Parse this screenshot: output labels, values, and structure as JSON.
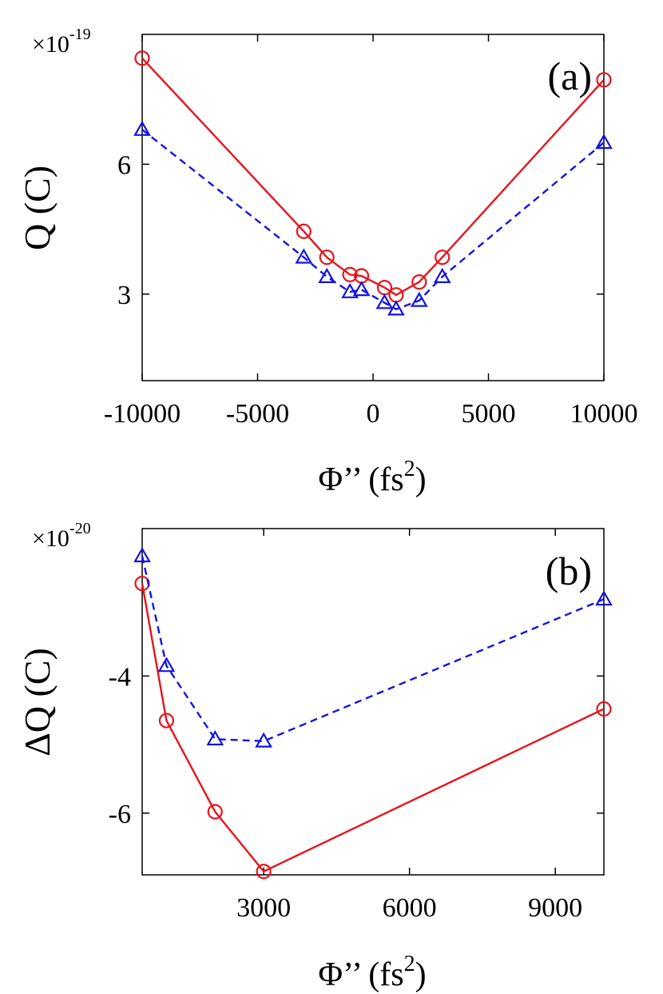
{
  "chart_data": [
    {
      "type": "line",
      "panel_label": "(a)",
      "multiplier_base": "×10",
      "multiplier_exp": "-19",
      "xlabel": {
        "main": "Φ’’ (fs",
        "sup": "2",
        "close": ")"
      },
      "ylabel": "Q (C)",
      "xlim": [
        -10000,
        10000
      ],
      "ylim": [
        1.0,
        9.0
      ],
      "xticks": [
        -10000,
        -5000,
        0,
        5000,
        10000
      ],
      "xtick_labels": [
        "-10000",
        "-5000",
        "0",
        "5000",
        "10000"
      ],
      "yticks": [
        6,
        3
      ],
      "ytick_labels": [
        "6",
        "3"
      ],
      "grid": false,
      "series": [
        {
          "color": "#e8141b",
          "style": "solid",
          "marker": "circle",
          "x": [
            -10000,
            -3000,
            -2000,
            -1000,
            -500,
            500,
            1000,
            2000,
            3000,
            10000
          ],
          "y": [
            8.45,
            4.45,
            3.85,
            3.45,
            3.42,
            3.15,
            2.98,
            3.28,
            3.85,
            7.95
          ]
        },
        {
          "color": "#1414e0",
          "style": "dashed",
          "marker": "triangle",
          "x": [
            -10000,
            -3000,
            -2000,
            -1000,
            -500,
            500,
            1000,
            2000,
            3000,
            10000
          ],
          "y": [
            6.8,
            3.85,
            3.4,
            3.05,
            3.1,
            2.8,
            2.65,
            2.85,
            3.4,
            6.5
          ]
        }
      ]
    },
    {
      "type": "line",
      "panel_label": "(b)",
      "multiplier_base": "×10",
      "multiplier_exp": "-20",
      "xlabel": {
        "main": "Φ’’ (fs",
        "sup": "2",
        "close": ")"
      },
      "ylabel": "ΔQ (C)",
      "xlim": [
        500,
        10000
      ],
      "ylim": [
        -6.9,
        -1.85
      ],
      "xticks": [
        3000,
        6000,
        9000
      ],
      "xtick_labels": [
        "3000",
        "6000",
        "9000"
      ],
      "yticks": [
        -4,
        -6
      ],
      "ytick_labels": [
        "-4",
        "-6"
      ],
      "grid": false,
      "series": [
        {
          "color": "#e8141b",
          "style": "solid",
          "marker": "circle",
          "x": [
            500,
            1000,
            2000,
            3000,
            10000
          ],
          "y": [
            -2.65,
            -4.65,
            -5.98,
            -6.85,
            -4.48
          ]
        },
        {
          "color": "#1414e0",
          "style": "dashed",
          "marker": "triangle",
          "x": [
            500,
            1000,
            2000,
            3000,
            10000
          ],
          "y": [
            -2.25,
            -3.85,
            -4.92,
            -4.95,
            -2.88
          ]
        }
      ]
    }
  ]
}
